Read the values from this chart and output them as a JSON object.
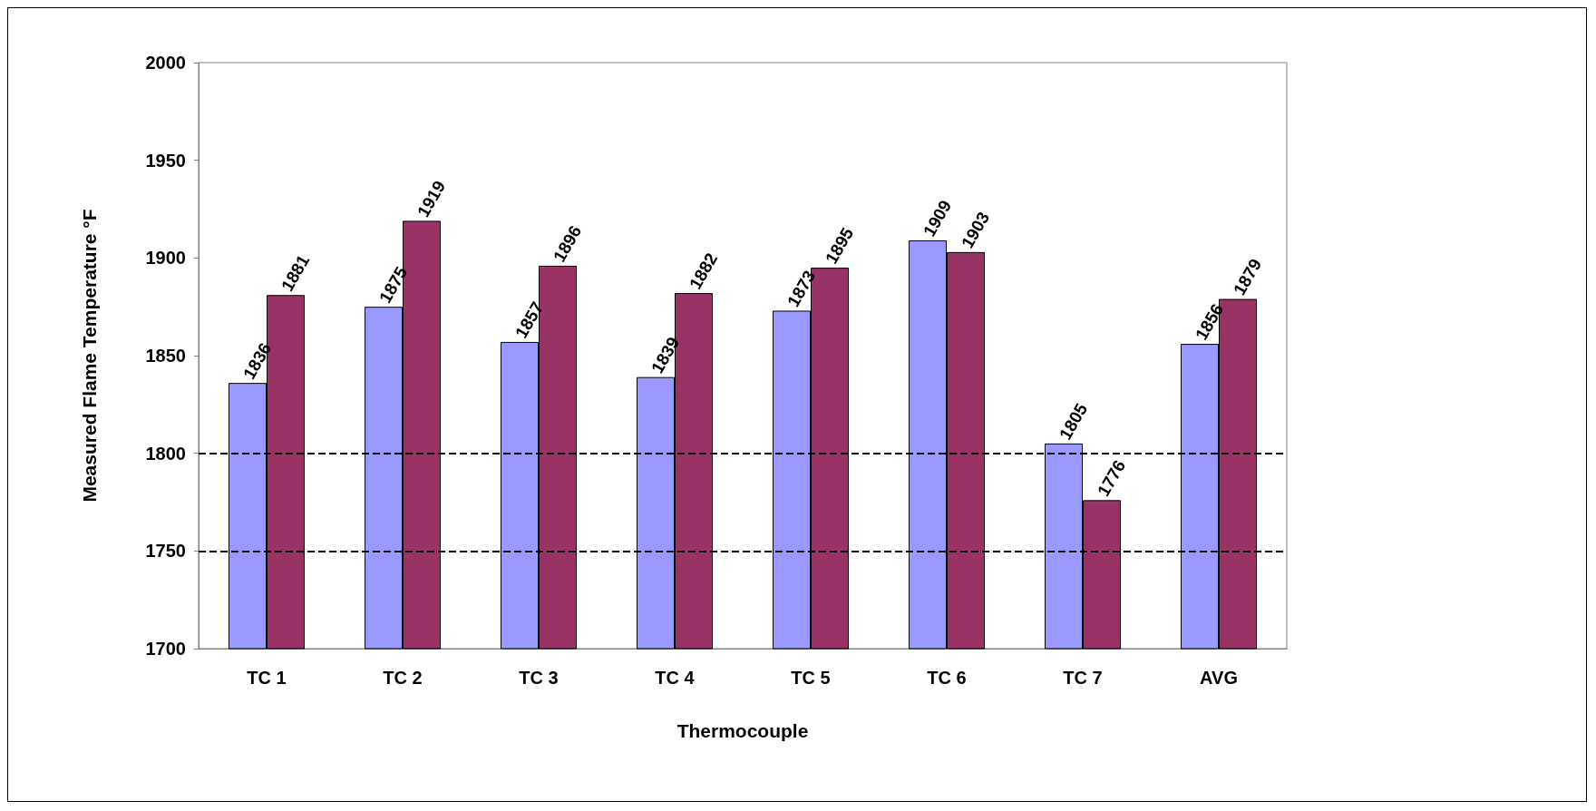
{
  "chart_data": {
    "type": "bar",
    "xlabel": "Thermocouple",
    "ylabel": "Measured Flame Temperature °F",
    "categories": [
      "TC 1",
      "TC 2",
      "TC 3",
      "TC 4",
      "TC 5",
      "TC 6",
      "TC 7",
      "AVG"
    ],
    "series": [
      {
        "color": "#9999ff",
        "values": [
          1836,
          1875,
          1857,
          1839,
          1873,
          1909,
          1805,
          1856
        ]
      },
      {
        "color": "#993366",
        "values": [
          1881,
          1919,
          1896,
          1882,
          1895,
          1903,
          1776,
          1879
        ]
      }
    ],
    "ylim": [
      1700,
      2000
    ],
    "yticks": [
      1700,
      1750,
      1800,
      1850,
      1900,
      1950,
      2000
    ],
    "ref_lines": [
      {
        "axis": "y",
        "value": 1800,
        "label": null,
        "color": "#000000",
        "line_style": "dashed"
      },
      {
        "axis": "y",
        "value": 1750,
        "label": null,
        "color": "#000000",
        "line_style": "dashed"
      }
    ],
    "data_labels": true,
    "grid": false
  }
}
